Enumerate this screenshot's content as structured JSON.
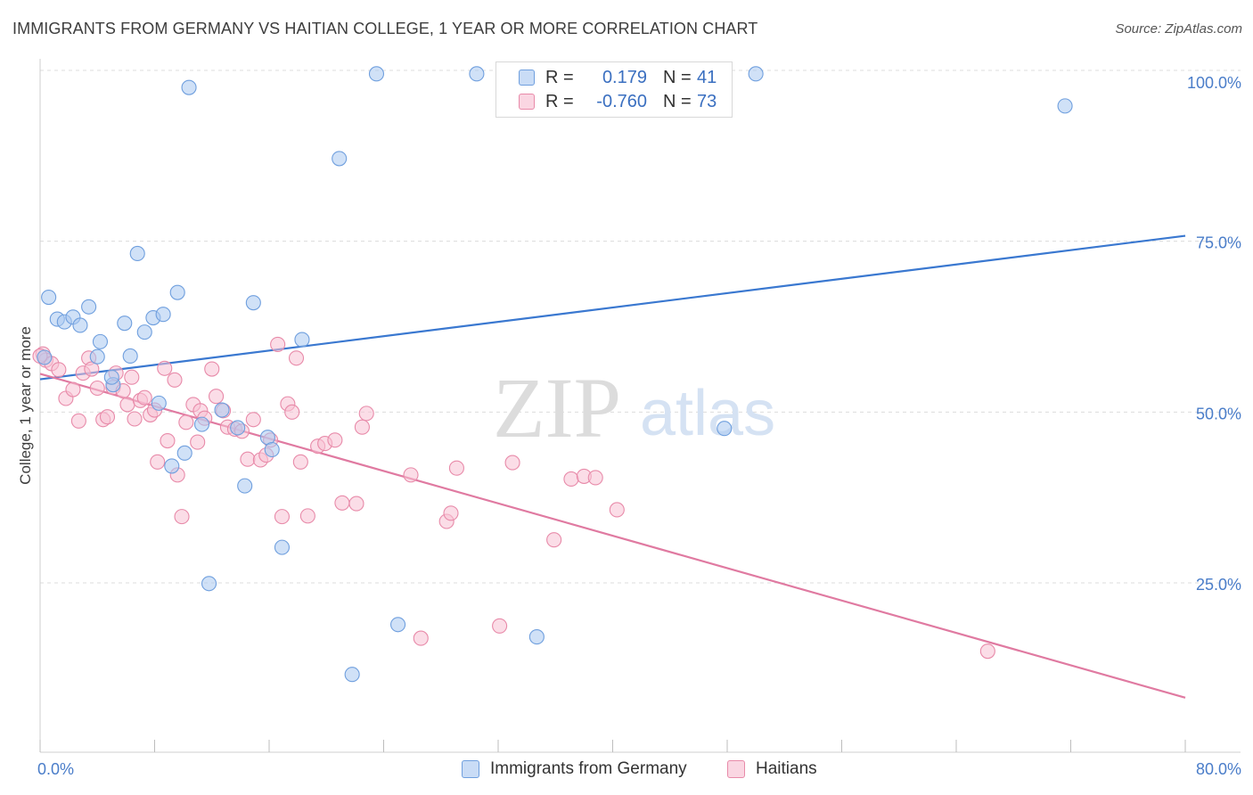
{
  "header": {
    "title": "IMMIGRANTS FROM GERMANY VS HAITIAN COLLEGE, 1 YEAR OR MORE CORRELATION CHART",
    "source": "Source: ZipAtlas.com"
  },
  "watermark": {
    "zip": "ZIP",
    "atlas": "atlas"
  },
  "legend": {
    "rows": [
      {
        "r_label": "R =",
        "r_value": "0.179",
        "n_label": "N =",
        "n_value": "41",
        "color": "#a9c8f0",
        "border": "#6f9fde"
      },
      {
        "r_label": "R =",
        "r_value": "-0.760",
        "n_label": "N =",
        "n_value": "73",
        "color": "#f7c1d3",
        "border": "#e88aa9"
      }
    ]
  },
  "bottom_legend": [
    {
      "label": "Immigrants from Germany",
      "color": "#a9c8f0",
      "border": "#6f9fde"
    },
    {
      "label": "Haitians",
      "color": "#f7c1d3",
      "border": "#e88aa9"
    }
  ],
  "chart_data": {
    "type": "scatter",
    "title": "IMMIGRANTS FROM GERMANY VS HAITIAN COLLEGE, 1 YEAR OR MORE CORRELATION CHART",
    "xlabel": "",
    "ylabel": "College, 1 year or more",
    "xlim": [
      0,
      80
    ],
    "ylim": [
      0,
      105
    ],
    "x_tick_labels": [
      "0.0%",
      "80.0%"
    ],
    "y_ticks": [
      25,
      50,
      75,
      100
    ],
    "y_tick_labels": [
      "25.0%",
      "50.0%",
      "75.0%",
      "100.0%"
    ],
    "grid": true,
    "series": [
      {
        "name": "Immigrants from Germany",
        "color": "#6f9fde",
        "fill": "#a9c8f0",
        "trend": {
          "x": [
            0,
            80
          ],
          "y": [
            54.8,
            75.8
          ],
          "color": "#3a78d0"
        },
        "points": [
          [
            0.3,
            58.0
          ],
          [
            0.6,
            66.8
          ],
          [
            1.2,
            63.6
          ],
          [
            1.7,
            63.2
          ],
          [
            2.3,
            63.9
          ],
          [
            2.8,
            62.7
          ],
          [
            3.4,
            65.4
          ],
          [
            4.2,
            60.3
          ],
          [
            4.0,
            58.1
          ],
          [
            5.1,
            54.0
          ],
          [
            5.0,
            55.1
          ],
          [
            5.9,
            63.0
          ],
          [
            6.3,
            58.2
          ],
          [
            6.8,
            73.2
          ],
          [
            7.3,
            61.7
          ],
          [
            7.9,
            63.8
          ],
          [
            8.6,
            64.3
          ],
          [
            9.6,
            67.5
          ],
          [
            10.1,
            44.0
          ],
          [
            10.4,
            97.5
          ],
          [
            11.3,
            48.2
          ],
          [
            11.8,
            24.9
          ],
          [
            12.7,
            50.3
          ],
          [
            13.8,
            47.7
          ],
          [
            14.3,
            39.2
          ],
          [
            14.9,
            66.0
          ],
          [
            15.9,
            46.3
          ],
          [
            16.2,
            44.5
          ],
          [
            16.9,
            30.2
          ],
          [
            18.3,
            60.6
          ],
          [
            20.9,
            87.1
          ],
          [
            21.8,
            11.6
          ],
          [
            23.5,
            99.5
          ],
          [
            25.0,
            18.9
          ],
          [
            30.5,
            99.5
          ],
          [
            34.7,
            17.1
          ],
          [
            47.8,
            47.6
          ],
          [
            50.0,
            99.5
          ],
          [
            71.6,
            94.8
          ],
          [
            8.3,
            51.3
          ],
          [
            9.2,
            42.1
          ]
        ]
      },
      {
        "name": "Haitians",
        "color": "#e88aa9",
        "fill": "#f7c1d3",
        "trend": {
          "x": [
            0,
            80
          ],
          "y": [
            55.6,
            8.2
          ],
          "color": "#e07aa1"
        },
        "points": [
          [
            0.2,
            58.5
          ],
          [
            0.4,
            57.6
          ],
          [
            0.8,
            57.1
          ],
          [
            1.3,
            56.2
          ],
          [
            1.8,
            52.0
          ],
          [
            2.3,
            53.3
          ],
          [
            2.7,
            48.7
          ],
          [
            3.0,
            55.7
          ],
          [
            3.4,
            57.9
          ],
          [
            3.6,
            56.3
          ],
          [
            4.0,
            53.5
          ],
          [
            4.4,
            48.9
          ],
          [
            4.7,
            49.3
          ],
          [
            5.1,
            53.6
          ],
          [
            5.3,
            55.7
          ],
          [
            5.8,
            53.1
          ],
          [
            6.1,
            51.1
          ],
          [
            6.4,
            55.1
          ],
          [
            6.6,
            49.0
          ],
          [
            7.0,
            51.7
          ],
          [
            7.3,
            52.1
          ],
          [
            7.7,
            49.6
          ],
          [
            8.0,
            50.3
          ],
          [
            8.2,
            42.7
          ],
          [
            8.7,
            56.4
          ],
          [
            8.9,
            45.8
          ],
          [
            9.4,
            54.7
          ],
          [
            9.6,
            40.8
          ],
          [
            9.9,
            34.7
          ],
          [
            10.2,
            48.5
          ],
          [
            10.7,
            51.1
          ],
          [
            11.0,
            45.6
          ],
          [
            11.2,
            50.2
          ],
          [
            11.5,
            49.1
          ],
          [
            12.0,
            56.3
          ],
          [
            12.3,
            52.3
          ],
          [
            12.8,
            50.2
          ],
          [
            13.1,
            47.8
          ],
          [
            13.6,
            47.5
          ],
          [
            14.1,
            47.2
          ],
          [
            14.5,
            43.1
          ],
          [
            14.9,
            48.9
          ],
          [
            15.4,
            43.0
          ],
          [
            15.8,
            43.7
          ],
          [
            16.1,
            45.9
          ],
          [
            16.6,
            59.9
          ],
          [
            16.9,
            34.7
          ],
          [
            17.3,
            51.2
          ],
          [
            17.6,
            50.0
          ],
          [
            17.9,
            57.9
          ],
          [
            18.2,
            42.7
          ],
          [
            18.7,
            34.8
          ],
          [
            19.4,
            45.0
          ],
          [
            19.9,
            45.4
          ],
          [
            20.6,
            45.9
          ],
          [
            21.1,
            36.7
          ],
          [
            22.1,
            36.6
          ],
          [
            22.5,
            47.8
          ],
          [
            22.8,
            49.8
          ],
          [
            25.9,
            40.8
          ],
          [
            26.6,
            16.9
          ],
          [
            28.4,
            34.0
          ],
          [
            28.7,
            35.2
          ],
          [
            29.1,
            41.8
          ],
          [
            32.1,
            18.7
          ],
          [
            33.0,
            42.6
          ],
          [
            35.9,
            31.3
          ],
          [
            37.1,
            40.2
          ],
          [
            38.0,
            40.6
          ],
          [
            38.8,
            40.4
          ],
          [
            40.3,
            35.7
          ],
          [
            66.2,
            15.0
          ],
          [
            0.0,
            58.2
          ]
        ]
      }
    ]
  }
}
